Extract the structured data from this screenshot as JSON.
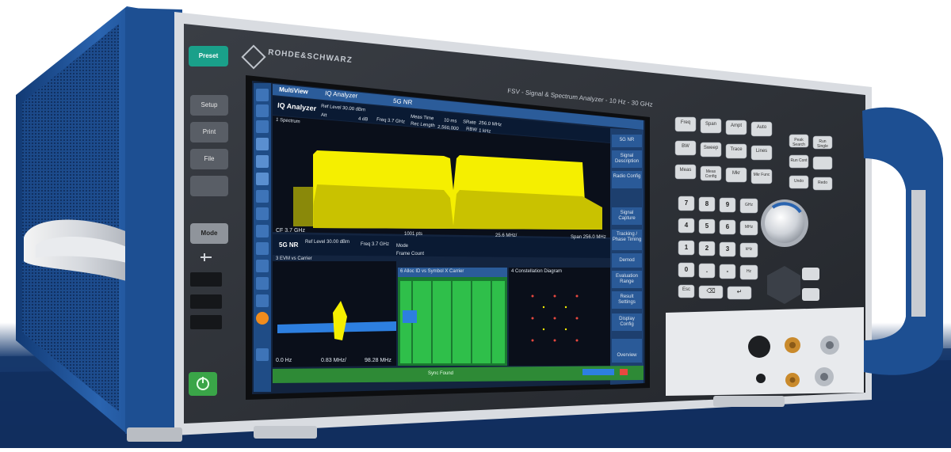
{
  "brand": {
    "logo_text": "ROHDE&SCHWARZ",
    "model": "FSV - Signal & Spectrum Analyzer - 10 Hz - 30 GHz"
  },
  "left_buttons": [
    "Preset",
    "Setup",
    "Print",
    "File",
    "",
    "Mode"
  ],
  "screen": {
    "tabs": [
      "MultiView",
      "IQ Analyzer",
      "5G NR"
    ],
    "upper": {
      "title": "IQ Analyzer",
      "ref_level": "Ref Level 30.00 dBm",
      "att": "Att",
      "att_value": "4 dB",
      "freq": "Freq 3.7 GHz",
      "meas_time": "Meas Time",
      "meas_time_value": "10 ms",
      "srate": "SRate",
      "srate_value": "256.0 MHz",
      "rec_length": "Rec Length",
      "rec_length_value": "2,560,000",
      "rbw": "RBW",
      "rbw_value": "1 kHz",
      "win_label": "1 Spectrum",
      "bottom_left": "CF 3.7 GHz",
      "bottom_mid": "1001 pts",
      "bottom_right_mid": "25.6 MHz/",
      "span": "Span 256.0 MHz"
    },
    "lower": {
      "title": "5G NR",
      "ref_level": "Ref Level 30.00 dBm",
      "freq": "Freq 3.7 GHz",
      "mode": "Mode",
      "frame_count": "Frame Count",
      "evm_title": "3 EVM vs Carrier",
      "alloc_title": "6 Alloc ID vs Symbol X Carrier",
      "const_title": "4 Constellation Diagram",
      "axis_left": "0.0 Hz",
      "axis_mid": "0.83 MHz/",
      "axis_right": "98.28 MHz",
      "status": "Sync Found"
    },
    "softkeys": [
      "5G NR",
      "Signal Description",
      "Radio Config",
      "Signal Capture",
      "Tracking / Phase Timing",
      "Demod",
      "Evaluation Range",
      "Result Settings",
      "Display Config",
      "Overview"
    ]
  },
  "right_keys": {
    "upper": [
      "Freq",
      "Span",
      "Ampt",
      "Auto",
      "BW",
      "Sweep",
      "Trace",
      "Lines",
      "Meas",
      "Meas Config",
      "Mkr",
      "Mkr Func"
    ],
    "right": [
      "Peak Search",
      "Run Single",
      "Run Cont",
      "Undo",
      "Redo"
    ],
    "numpad": [
      "7",
      "8",
      "9",
      "4",
      "5",
      "6",
      "1",
      "2",
      "3",
      "0",
      ".",
      "-"
    ],
    "units": [
      "GHz",
      "MHz",
      "kHz",
      "Hz"
    ],
    "bottom": [
      "Esc",
      "⌫",
      "↵"
    ]
  },
  "colors": {
    "chassis_blue": "#1d4f92",
    "panel_dark": "#2b2f36",
    "trace_yellow": "#f5ef00",
    "alloc_green": "#2fbf4a",
    "screen_blue": "#1d3f6e",
    "power_green": "#3aa548"
  }
}
